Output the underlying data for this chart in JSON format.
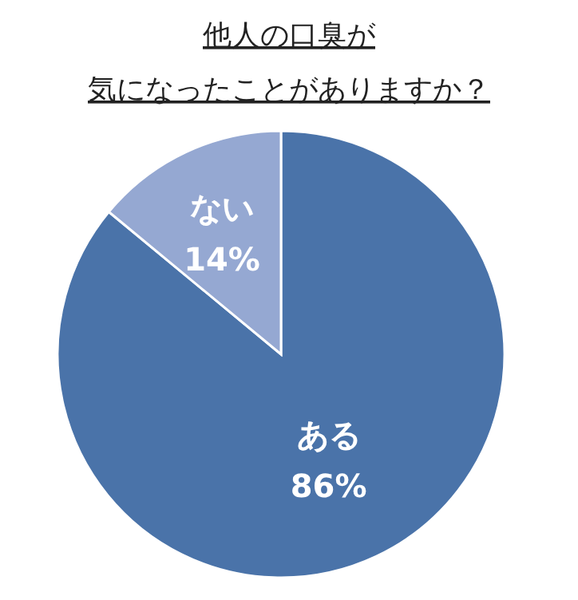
{
  "chart_data": {
    "type": "pie",
    "title": "他人の口臭が",
    "subtitle": "気になったことがありますか？",
    "categories": [
      "ある",
      "ない"
    ],
    "values": [
      86,
      14
    ],
    "colors": [
      "#4a73a9",
      "#95a8d2"
    ],
    "value_labels": [
      "86%",
      "14%"
    ]
  }
}
